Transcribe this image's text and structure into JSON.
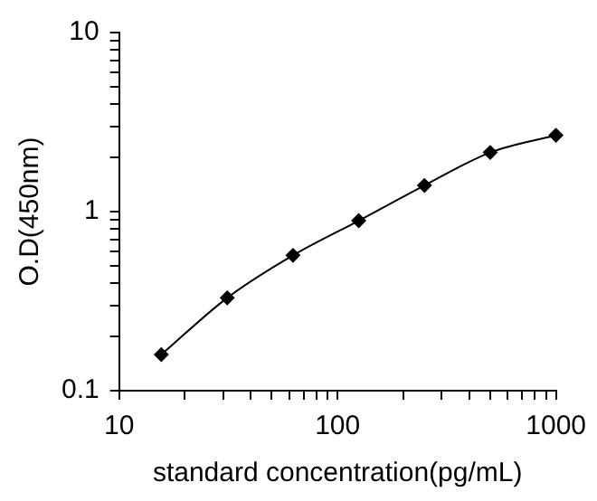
{
  "chart_data": {
    "type": "line",
    "xlabel": "standard concentration(pg/mL)",
    "ylabel": "O.D(450nm)",
    "x": [
      15.6,
      31.25,
      62.5,
      125,
      250,
      500,
      1000
    ],
    "series": [
      {
        "color": "#000000",
        "values": [
          0.159,
          0.33,
          0.57,
          0.89,
          1.4,
          2.14,
          2.67
        ]
      }
    ],
    "log": "xy",
    "xlim": [
      10,
      1000
    ],
    "ylim": [
      0.1,
      10
    ],
    "xticks": [
      10,
      {
        "value": 20,
        "label": null
      },
      {
        "value": 30,
        "label": null
      },
      {
        "value": 40,
        "label": null
      },
      {
        "value": 50,
        "label": null
      },
      {
        "value": 60,
        "label": null
      },
      {
        "value": 70,
        "label": null
      },
      {
        "value": 80,
        "label": null
      },
      {
        "value": 90,
        "label": null
      },
      100,
      {
        "value": 200,
        "label": null
      },
      {
        "value": 300,
        "label": null
      },
      {
        "value": 400,
        "label": null
      },
      {
        "value": 500,
        "label": null
      },
      {
        "value": 600,
        "label": null
      },
      {
        "value": 700,
        "label": null
      },
      {
        "value": 800,
        "label": null
      },
      {
        "value": 900,
        "label": null
      },
      1000
    ],
    "yticks": [
      0.1,
      {
        "value": 0.2,
        "label": null
      },
      {
        "value": 0.3,
        "label": null
      },
      {
        "value": 0.4,
        "label": null
      },
      {
        "value": 0.5,
        "label": null
      },
      {
        "value": 0.6,
        "label": null
      },
      {
        "value": 0.7,
        "label": null
      },
      {
        "value": 0.8,
        "label": null
      },
      {
        "value": 0.9,
        "label": null
      },
      1,
      {
        "value": 2,
        "label": null
      },
      {
        "value": 3,
        "label": null
      },
      {
        "value": 4,
        "label": null
      },
      {
        "value": 5,
        "label": null
      },
      {
        "value": 6,
        "label": null
      },
      {
        "value": 7,
        "label": null
      },
      {
        "value": 8,
        "label": null
      },
      {
        "value": 9,
        "label": null
      },
      10
    ],
    "grid": false,
    "legend": false,
    "marker": "diamond",
    "line_style": "solid"
  }
}
